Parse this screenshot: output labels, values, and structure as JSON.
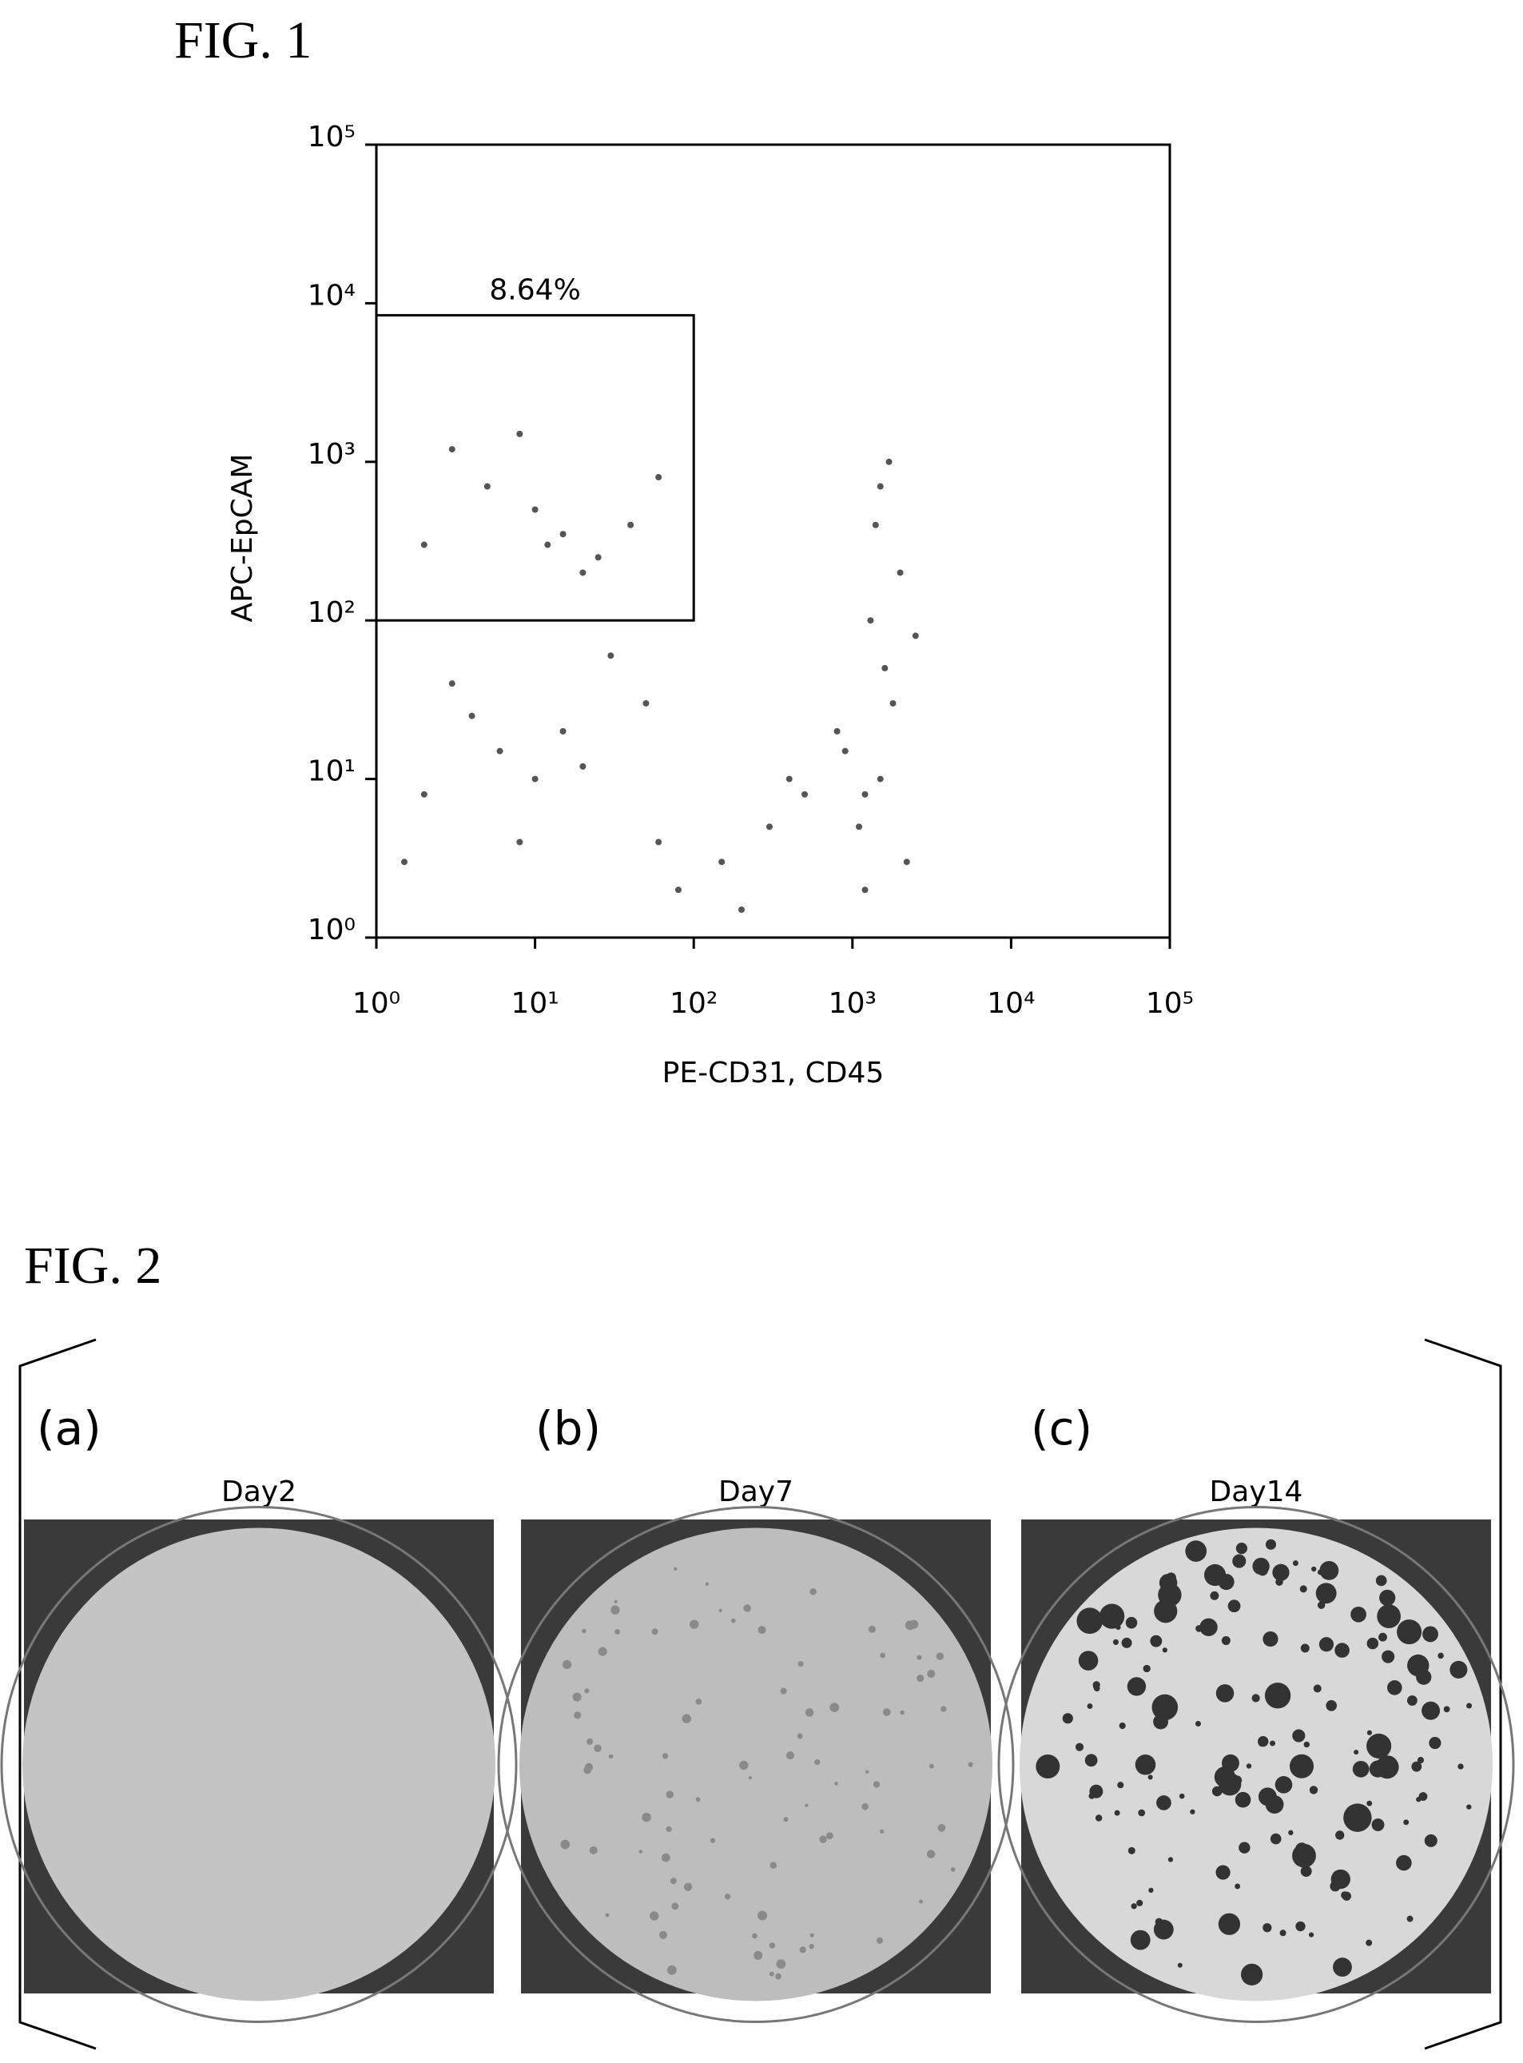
{
  "fig1_label": "FIG. 1",
  "chart_data": {
    "type": "scatter",
    "xlabel": "PE-CD31, CD45",
    "ylabel": "APC-EpCAM",
    "xscale": "log",
    "yscale": "log",
    "xlim": [
      1,
      100000
    ],
    "ylim": [
      1,
      100000
    ],
    "xticks": [
      {
        "value": 1,
        "label": "10⁰"
      },
      {
        "value": 10,
        "label": "10¹"
      },
      {
        "value": 100,
        "label": "10²"
      },
      {
        "value": 1000,
        "label": "10³"
      },
      {
        "value": 10000,
        "label": "10⁴"
      },
      {
        "value": 100000,
        "label": "10⁵"
      }
    ],
    "yticks": [
      {
        "value": 1,
        "label": "10⁰"
      },
      {
        "value": 10,
        "label": "10¹"
      },
      {
        "value": 100,
        "label": "10²"
      },
      {
        "value": 1000,
        "label": "10³"
      },
      {
        "value": 10000,
        "label": "10⁴"
      },
      {
        "value": 100000,
        "label": "10⁵"
      }
    ],
    "color": "#555555",
    "gate": {
      "xlim": [
        1,
        100
      ],
      "ylim": [
        100,
        8400
      ],
      "annotation": "8.64%"
    },
    "x": [
      15,
      10,
      25,
      5,
      40,
      8,
      20,
      3,
      60,
      12,
      6,
      4,
      10,
      2,
      15,
      8,
      3,
      20,
      1200,
      1500,
      1100,
      1800,
      1300,
      2000,
      1600,
      1400,
      2500,
      900,
      1500,
      1700,
      1200,
      2200,
      800,
      150,
      300,
      80,
      500,
      200,
      400,
      60,
      30,
      50,
      2,
      1.5
    ],
    "y": [
      350,
      500,
      250,
      700,
      400,
      1500,
      200,
      1200,
      800,
      300,
      15,
      25,
      10,
      8,
      20,
      4,
      40,
      12,
      8,
      10,
      5,
      30,
      100,
      200,
      50,
      400,
      80,
      15,
      700,
      1000,
      2,
      3,
      20,
      3,
      5,
      2,
      8,
      1.5,
      10,
      4,
      60,
      30,
      300,
      3
    ]
  },
  "fig2": {
    "label": "FIG. 2",
    "panels": [
      {
        "label": "(a)",
        "caption": "Day2"
      },
      {
        "label": "(b)",
        "caption": "Day7"
      },
      {
        "label": "(c)",
        "caption": "Day14"
      }
    ]
  }
}
